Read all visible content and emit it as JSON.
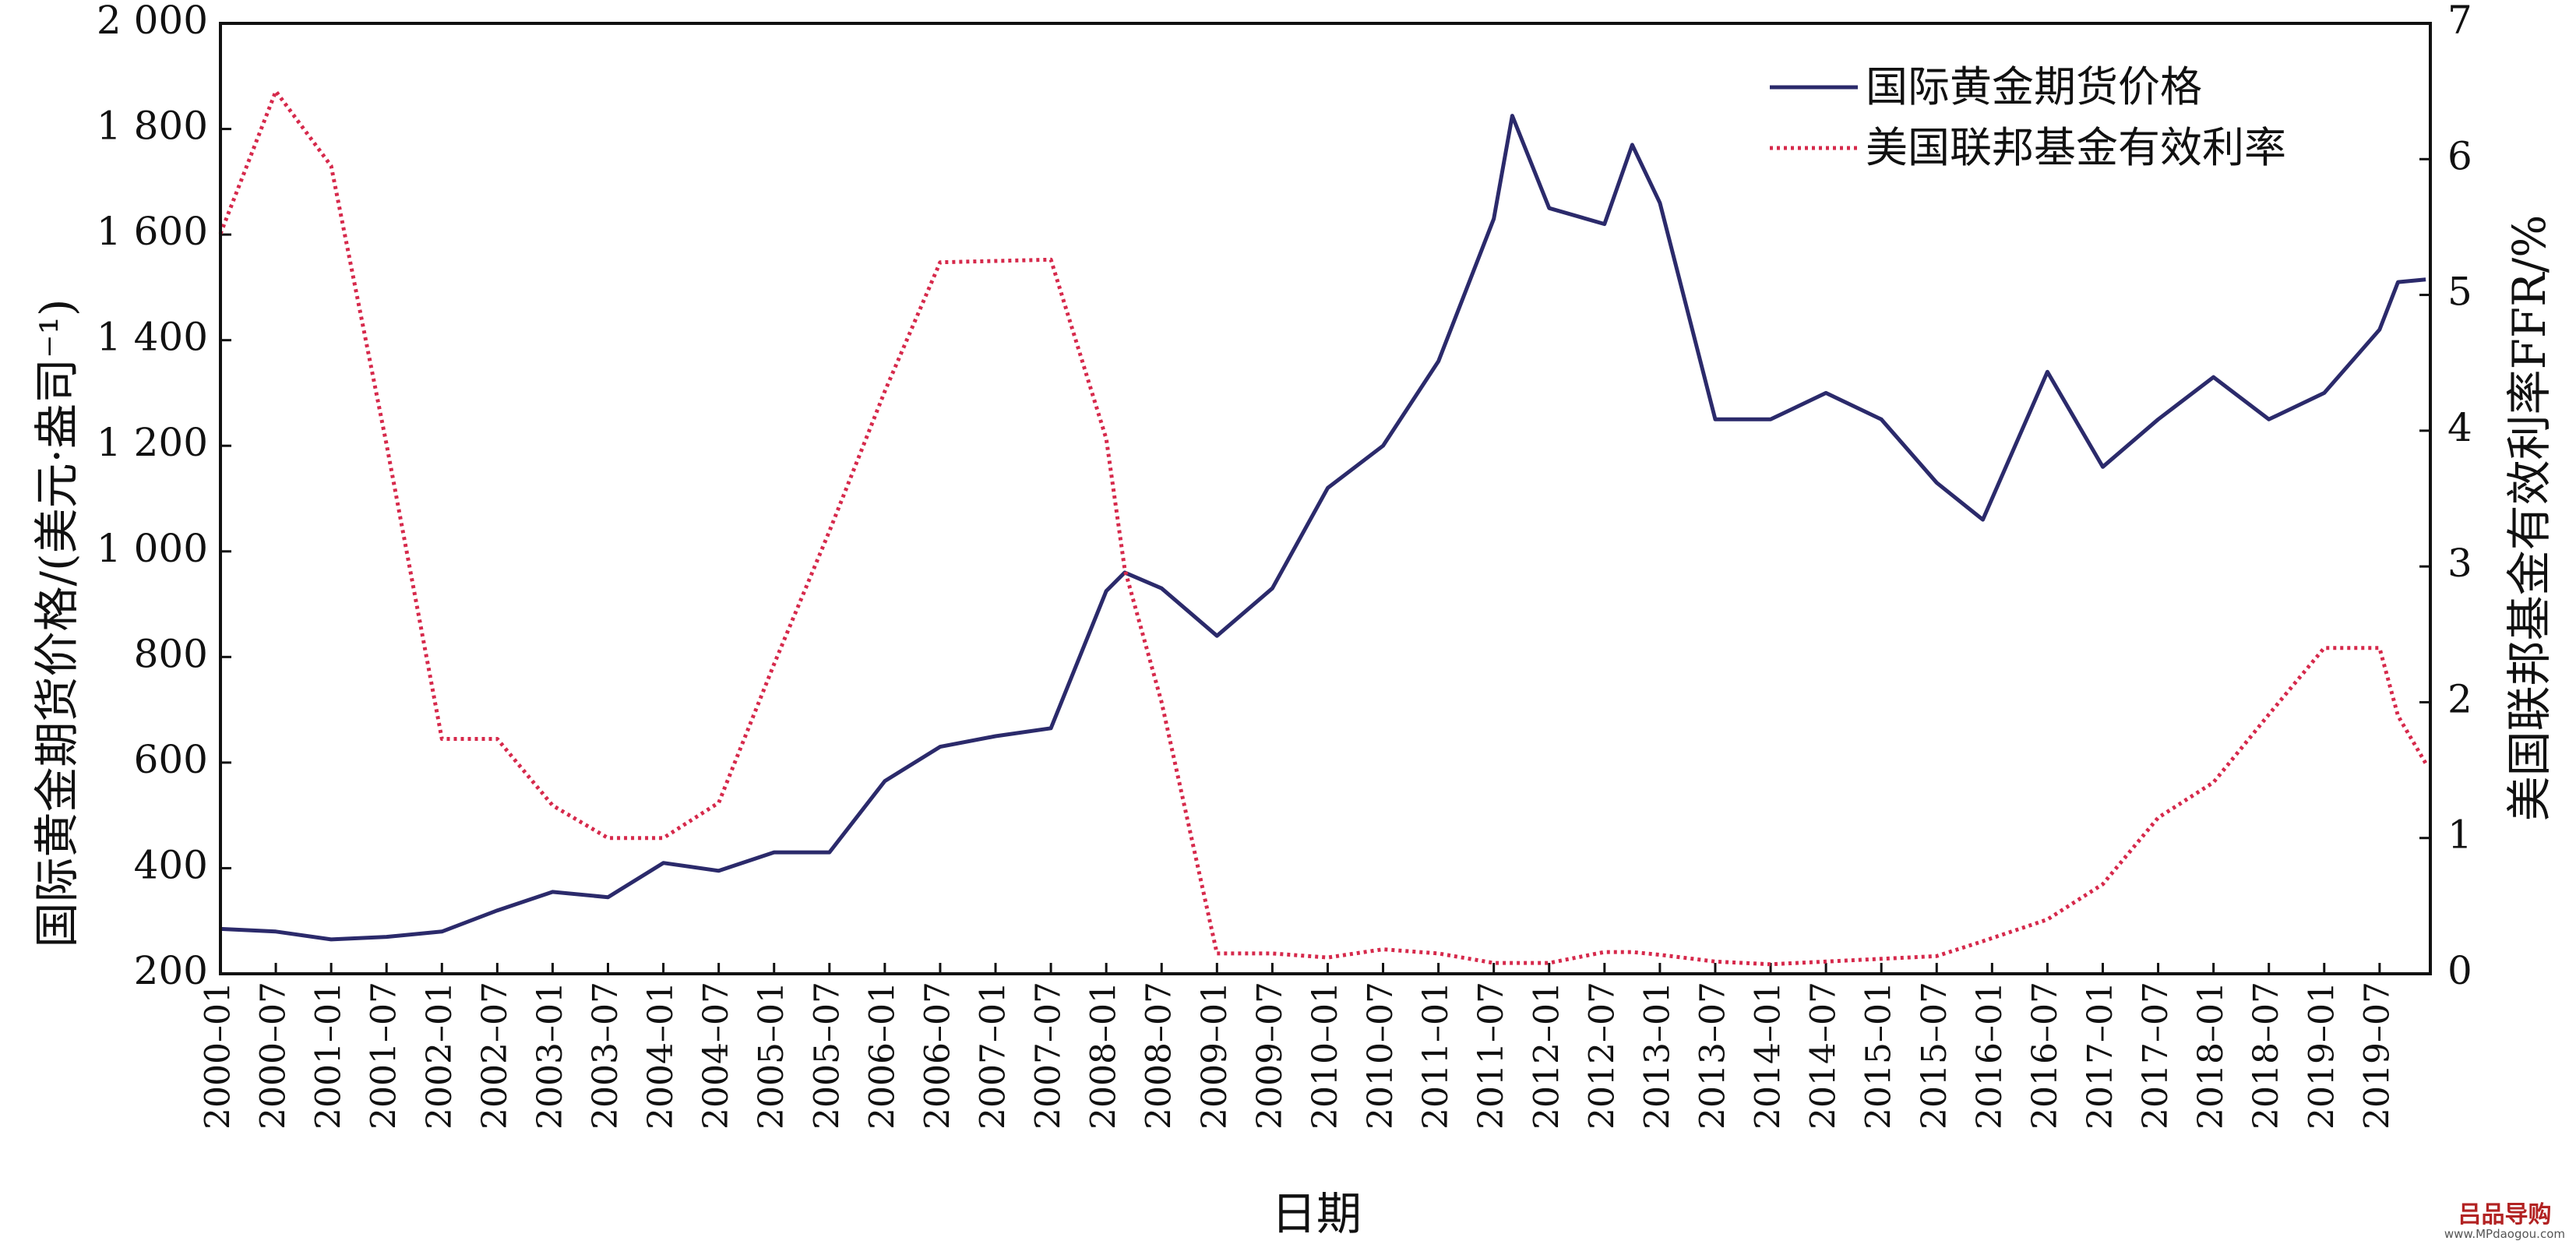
{
  "chart_data": {
    "type": "line",
    "xlabel": "日期",
    "ylabel_left": "国际黄金期货价格/(美元·盎司⁻¹)",
    "ylabel_right": "美国联邦基金有效利率FFR/%",
    "ylim_left": [
      200,
      2000
    ],
    "ylim_right": [
      0,
      7
    ],
    "yticks_left": [
      "2 000",
      "1 800",
      "1 600",
      "1 400",
      "1 200",
      "1 000",
      "800",
      "600",
      "400",
      "200"
    ],
    "yticks_right": [
      "7",
      "6",
      "5",
      "4",
      "3",
      "2",
      "1",
      "0"
    ],
    "xticks": [
      "2000–01",
      "2000–07",
      "2001–01",
      "2001–07",
      "2002–01",
      "2002–07",
      "2003–01",
      "2003–07",
      "2004–01",
      "2004–07",
      "2005–01",
      "2005–07",
      "2006–01",
      "2006–07",
      "2007–01",
      "2007–07",
      "2008–01",
      "2008–07",
      "2009–01",
      "2009–07",
      "2010–01",
      "2010–07",
      "2011–01",
      "2011–07",
      "2012–01",
      "2012–07",
      "2013–01",
      "2013–07",
      "2014–01",
      "2014–07",
      "2015–01",
      "2015–07",
      "2016–01",
      "2016–07",
      "2017–01",
      "2017–07",
      "2018–01",
      "2018–07",
      "2019–01",
      "2019–07"
    ],
    "x_dates": [
      "2000-01",
      "2000-07",
      "2001-01",
      "2001-07",
      "2002-01",
      "2002-07",
      "2003-01",
      "2003-07",
      "2004-01",
      "2004-07",
      "2005-01",
      "2005-07",
      "2006-01",
      "2006-07",
      "2007-01",
      "2007-07",
      "2008-01",
      "2008-03",
      "2008-07",
      "2009-01",
      "2009-07",
      "2010-01",
      "2010-07",
      "2011-01",
      "2011-07",
      "2011-09",
      "2012-01",
      "2012-07",
      "2012-10",
      "2013-01",
      "2013-07",
      "2014-01",
      "2014-07",
      "2015-01",
      "2015-07",
      "2015-12",
      "2016-07",
      "2017-01",
      "2017-07",
      "2018-01",
      "2018-07",
      "2019-01",
      "2019-07",
      "2019-09",
      "2019-12"
    ],
    "legend_position": "top-right",
    "series": [
      {
        "name": "国际黄金期货价格",
        "axis": "left",
        "color": "#2b2a6b",
        "style": "solid",
        "values": [
          285,
          280,
          265,
          270,
          280,
          320,
          355,
          345,
          410,
          395,
          430,
          430,
          565,
          630,
          650,
          665,
          925,
          960,
          930,
          840,
          930,
          1120,
          1200,
          1360,
          1630,
          1825,
          1650,
          1620,
          1770,
          1660,
          1250,
          1250,
          1300,
          1250,
          1130,
          1060,
          1340,
          1160,
          1250,
          1330,
          1250,
          1300,
          1420,
          1510,
          1515
        ]
      },
      {
        "name": "美国联邦基金有效利率",
        "axis": "right",
        "color": "#d6294b",
        "style": "dotted",
        "values": [
          5.45,
          6.5,
          5.95,
          3.9,
          1.73,
          1.73,
          1.24,
          1.0,
          1.0,
          1.26,
          2.28,
          3.26,
          4.29,
          5.24,
          5.25,
          5.26,
          3.94,
          2.98,
          2.0,
          0.15,
          0.15,
          0.12,
          0.18,
          0.15,
          0.08,
          0.08,
          0.08,
          0.16,
          0.16,
          0.14,
          0.09,
          0.07,
          0.09,
          0.11,
          0.13,
          0.24,
          0.4,
          0.66,
          1.15,
          1.41,
          1.91,
          2.4,
          2.4,
          1.9,
          1.55
        ]
      }
    ]
  },
  "watermark": {
    "text": "吕品导购",
    "url": "www.MPdaogou.com"
  }
}
